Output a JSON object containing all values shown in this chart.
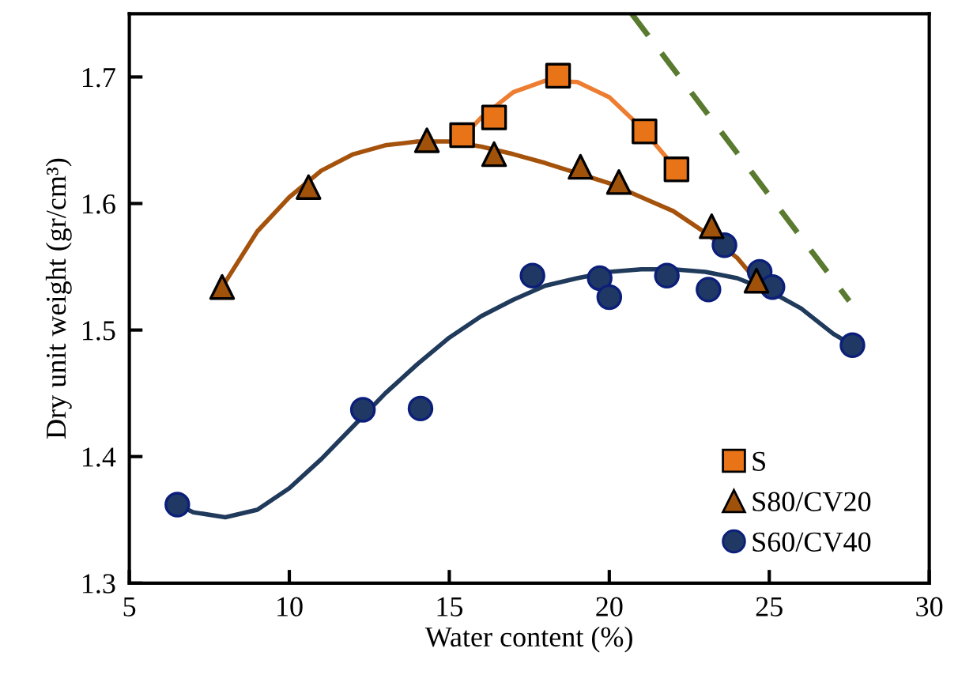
{
  "chart_data": {
    "type": "scatter",
    "xlabel": "Water content (%)",
    "ylabel": "Dry unit weight (gr/cm³)",
    "xlim": [
      5,
      30
    ],
    "ylim": [
      1.3,
      1.75
    ],
    "xticks": [
      5,
      10,
      15,
      20,
      25,
      30
    ],
    "yticks": [
      1.3,
      1.4,
      1.5,
      1.6,
      1.7
    ],
    "grid": false,
    "legend": "bottom right",
    "series": [
      {
        "type": "line",
        "color": "#ed7d31",
        "marker": "none",
        "line_style": "solid",
        "x": [
          15.4,
          16,
          17,
          18,
          19,
          20,
          21,
          22.1
        ],
        "values": [
          1.652,
          1.668,
          1.688,
          1.697,
          1.696,
          1.684,
          1.66,
          1.627
        ]
      },
      {
        "type": "line",
        "color": "#a5520c",
        "marker": "none",
        "line_style": "solid",
        "x": [
          7.9,
          9,
          10,
          11,
          12,
          13,
          14,
          15,
          16,
          17,
          18,
          19,
          20,
          21,
          22,
          23,
          24,
          24.6
        ],
        "values": [
          1.534,
          1.578,
          1.605,
          1.626,
          1.639,
          1.646,
          1.649,
          1.649,
          1.645,
          1.639,
          1.632,
          1.624,
          1.616,
          1.605,
          1.594,
          1.577,
          1.557,
          1.539
        ]
      },
      {
        "type": "line",
        "color": "#203a5c",
        "marker": "none",
        "line_style": "solid",
        "x": [
          6.5,
          7,
          8,
          9,
          10,
          11,
          12,
          13,
          14,
          15,
          16,
          17,
          18,
          19,
          20,
          21,
          22,
          23,
          24,
          25,
          26,
          27,
          27.6
        ],
        "values": [
          1.362,
          1.356,
          1.352,
          1.358,
          1.375,
          1.398,
          1.424,
          1.45,
          1.473,
          1.494,
          1.511,
          1.524,
          1.535,
          1.541,
          1.546,
          1.548,
          1.548,
          1.546,
          1.541,
          1.531,
          1.517,
          1.497,
          1.488
        ]
      },
      {
        "type": "line",
        "color": "#5a7a2f",
        "marker": "none",
        "line_style": "dashed",
        "x": [
          20.7,
          27.5
        ],
        "values": [
          1.75,
          1.523
        ]
      },
      {
        "name": "S",
        "color": "#e97418",
        "marker": "square",
        "x": [
          15.4,
          16.4,
          18.4,
          21.1,
          22.1
        ],
        "values": [
          1.654,
          1.668,
          1.701,
          1.657,
          1.627
        ]
      },
      {
        "name": "S80/CV20",
        "color": "#a0520a",
        "marker": "triangle",
        "x": [
          7.9,
          10.6,
          14.3,
          16.4,
          19.1,
          20.3,
          23.2,
          24.6
        ],
        "values": [
          1.534,
          1.613,
          1.65,
          1.639,
          1.629,
          1.617,
          1.582,
          1.539
        ]
      },
      {
        "name": "S60/CV40",
        "color": "#1f3864",
        "marker": "circle",
        "x": [
          6.5,
          12.3,
          14.1,
          17.6,
          19.7,
          20.0,
          21.8,
          23.1,
          23.6,
          24.7,
          25.1,
          27.6
        ],
        "values": [
          1.362,
          1.437,
          1.438,
          1.543,
          1.541,
          1.526,
          1.543,
          1.532,
          1.567,
          1.546,
          1.534,
          1.488
        ]
      }
    ]
  }
}
